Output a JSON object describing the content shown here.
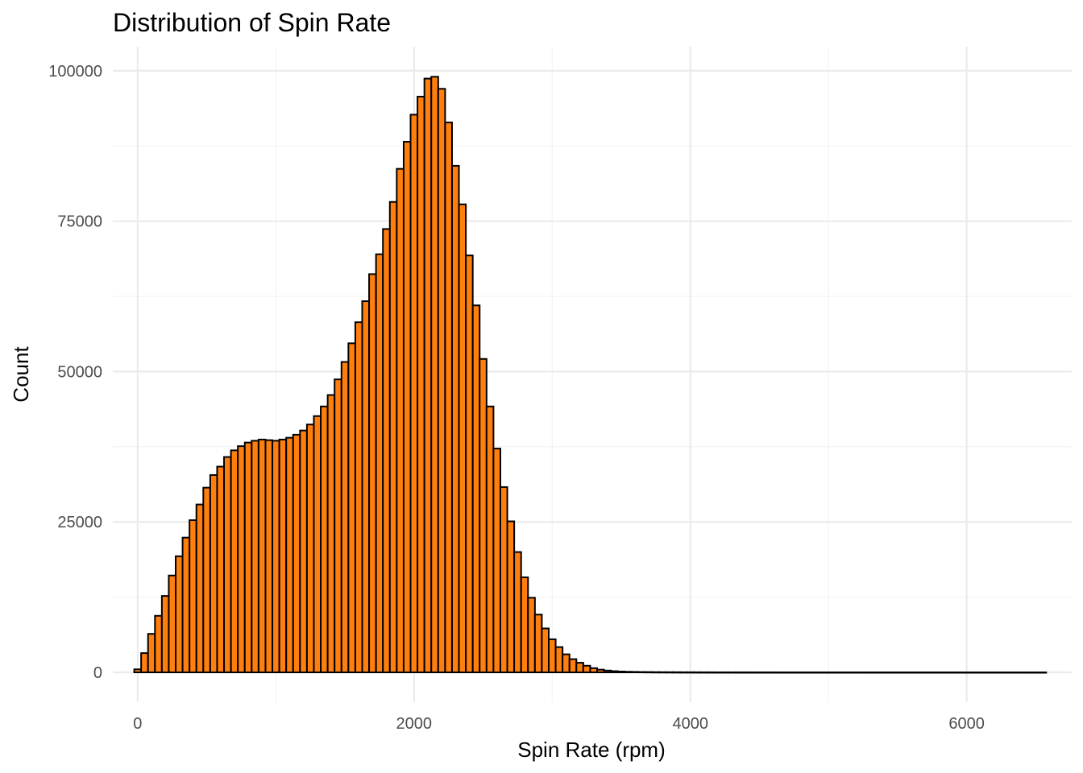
{
  "chart_data": {
    "type": "bar",
    "title": "Distribution of Spin Rate",
    "xlabel": "Spin Rate (rpm)",
    "ylabel": "Count",
    "xlim": [
      -180,
      6760
    ],
    "ylim": [
      -4950,
      104000
    ],
    "x_ticks": [
      0,
      2000,
      4000,
      6000
    ],
    "x_tick_labels": [
      "0",
      "2000",
      "4000",
      "6000"
    ],
    "y_ticks": [
      0,
      25000,
      50000,
      75000,
      100000
    ],
    "y_tick_labels": [
      "0",
      "25000",
      "50000",
      "75000",
      "100000"
    ],
    "grid": true,
    "bar_fill": "#ff7f0e",
    "bar_outline": "#000000",
    "bin_width": 50,
    "bin_centers": [
      0,
      50,
      100,
      150,
      200,
      250,
      300,
      350,
      400,
      450,
      500,
      550,
      600,
      650,
      700,
      750,
      800,
      850,
      900,
      950,
      1000,
      1050,
      1100,
      1150,
      1200,
      1250,
      1300,
      1350,
      1400,
      1450,
      1500,
      1550,
      1600,
      1650,
      1700,
      1750,
      1800,
      1850,
      1900,
      1950,
      2000,
      2050,
      2100,
      2150,
      2200,
      2250,
      2300,
      2350,
      2400,
      2450,
      2500,
      2550,
      2600,
      2650,
      2700,
      2750,
      2800,
      2850,
      2900,
      2950,
      3000,
      3050,
      3100,
      3150,
      3200,
      3250,
      3300,
      3350,
      3400,
      3450,
      3500,
      3550,
      3600,
      3650,
      3700,
      3750,
      3800,
      3850,
      3900,
      3950,
      4000,
      4050,
      4100,
      4150,
      4200,
      4250,
      4300,
      4350,
      4400,
      4450,
      4500,
      4550,
      4600,
      4650,
      4700,
      4750,
      4800,
      4850,
      4900,
      4950,
      5000,
      5050,
      5100,
      5150,
      5200,
      5250,
      5300,
      5350,
      5400,
      5450,
      5500,
      5550,
      5600,
      5650,
      5700,
      5750,
      5800,
      5850,
      5900,
      5950,
      6000,
      6050,
      6100,
      6150,
      6200,
      6250,
      6300,
      6350,
      6400,
      6450,
      6500,
      6550
    ],
    "counts": [
      500,
      3200,
      6400,
      9400,
      12700,
      16100,
      19300,
      22400,
      25300,
      27900,
      30700,
      32800,
      34200,
      35800,
      36900,
      37600,
      38200,
      38500,
      38700,
      38600,
      38500,
      38700,
      39000,
      39500,
      40200,
      41200,
      42600,
      44200,
      46100,
      48700,
      51600,
      54700,
      58200,
      61700,
      66200,
      69500,
      73700,
      78200,
      83700,
      88200,
      92700,
      95700,
      98700,
      99000,
      97000,
      91400,
      84200,
      77800,
      69300,
      61000,
      52100,
      44200,
      37200,
      30800,
      25100,
      20000,
      15800,
      12400,
      9600,
      7300,
      5500,
      4200,
      3000,
      2200,
      1600,
      1100,
      700,
      450,
      300,
      200,
      140,
      100,
      80,
      60,
      50,
      40,
      35,
      30,
      25,
      20,
      18,
      16,
      14,
      12,
      10,
      10,
      9,
      8,
      8,
      7,
      7,
      6,
      6,
      5,
      5,
      5,
      4,
      4,
      4,
      4,
      3,
      3,
      3,
      3,
      3,
      3,
      2,
      2,
      2,
      2,
      2,
      2,
      2,
      2,
      2,
      2,
      2,
      2,
      2,
      2,
      1,
      1,
      1,
      1,
      1,
      1,
      1,
      1,
      1,
      1,
      1,
      1
    ]
  }
}
